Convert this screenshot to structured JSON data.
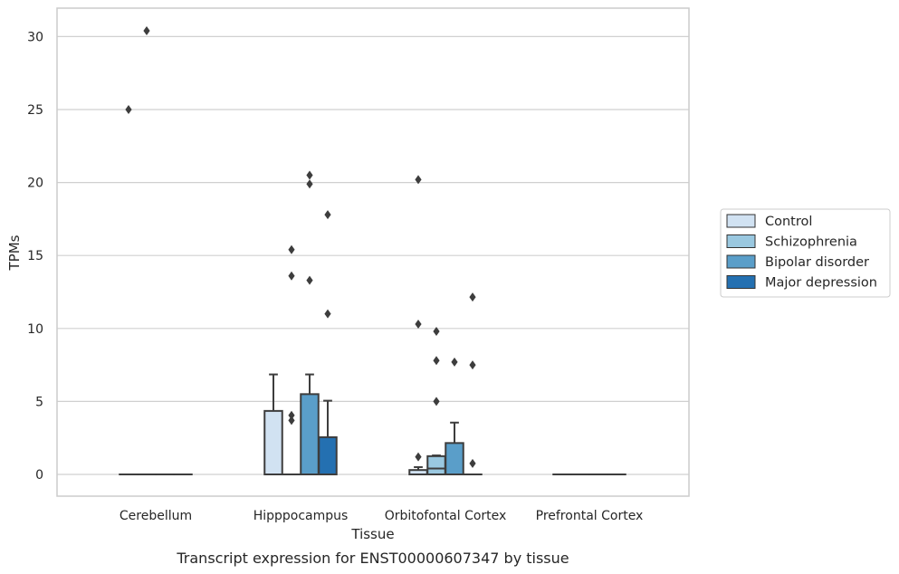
{
  "chart_data": {
    "type": "box",
    "xlabel": "Tissue",
    "ylabel": "TPMs",
    "caption": "Transcript expression for ENST00000607347 by tissue",
    "categories": [
      "Cerebellum",
      "Hipppocampus",
      "Orbitofontal Cortex",
      "Prefrontal Cortex"
    ],
    "ylim": [
      -1.5,
      32
    ],
    "yticks": [
      0,
      5,
      10,
      15,
      20,
      25,
      30
    ],
    "grid": true,
    "legend_position": "right",
    "series": [
      {
        "name": "Control",
        "color": "#d1e2f2",
        "boxes": [
          {
            "q1": 0,
            "median": 0,
            "q3": 0,
            "whislo": 0,
            "whishi": 0,
            "fliers": [
              25.0
            ]
          },
          {
            "q1": 0,
            "median": 0,
            "q3": 4.35,
            "whislo": 0,
            "whishi": 6.85,
            "fliers": []
          },
          {
            "q1": 0,
            "median": 0,
            "q3": 0.3,
            "whislo": 0,
            "whishi": 0.5,
            "fliers": [
              20.2,
              10.3,
              1.2
            ]
          },
          {
            "q1": 0,
            "median": 0,
            "q3": 0,
            "whislo": 0,
            "whishi": 0,
            "fliers": []
          }
        ]
      },
      {
        "name": "Schizophrenia",
        "color": "#9ac8e0",
        "boxes": [
          {
            "q1": 0,
            "median": 0,
            "q3": 0,
            "whislo": 0,
            "whishi": 0,
            "fliers": [
              30.4
            ]
          },
          {
            "q1": 0,
            "median": 0,
            "q3": 0,
            "whislo": 0,
            "whishi": 0,
            "fliers": [
              15.4,
              13.6,
              4.05,
              3.7
            ]
          },
          {
            "q1": 0,
            "median": 0.4,
            "q3": 1.25,
            "whislo": 0,
            "whishi": 1.3,
            "fliers": [
              9.8,
              7.8,
              5.0
            ]
          },
          {
            "q1": 0,
            "median": 0,
            "q3": 0,
            "whislo": 0,
            "whishi": 0,
            "fliers": []
          }
        ]
      },
      {
        "name": "Bipolar disorder",
        "color": "#5a9ec9",
        "boxes": [
          {
            "q1": 0,
            "median": 0,
            "q3": 0,
            "whislo": 0,
            "whishi": 0,
            "fliers": []
          },
          {
            "q1": 0,
            "median": 0,
            "q3": 5.5,
            "whislo": 0,
            "whishi": 6.85,
            "fliers": [
              13.3,
              20.5,
              19.9
            ]
          },
          {
            "q1": 0,
            "median": 0,
            "q3": 2.15,
            "whislo": 0,
            "whishi": 3.55,
            "fliers": [
              7.7
            ]
          },
          {
            "q1": 0,
            "median": 0,
            "q3": 0,
            "whislo": 0,
            "whishi": 0,
            "fliers": []
          }
        ]
      },
      {
        "name": "Major depression",
        "color": "#2470b1",
        "boxes": [
          {
            "q1": 0,
            "median": 0,
            "q3": 0,
            "whislo": 0,
            "whishi": 0,
            "fliers": []
          },
          {
            "q1": 0,
            "median": 0,
            "q3": 2.55,
            "whislo": 0,
            "whishi": 5.05,
            "fliers": [
              17.8,
              11.0
            ]
          },
          {
            "q1": 0,
            "median": 0,
            "q3": 0,
            "whislo": 0,
            "whishi": 0,
            "fliers": [
              12.15,
              7.5,
              0.75
            ]
          },
          {
            "q1": 0,
            "median": 0,
            "q3": 0,
            "whislo": 0,
            "whishi": 0,
            "fliers": []
          }
        ]
      }
    ]
  }
}
